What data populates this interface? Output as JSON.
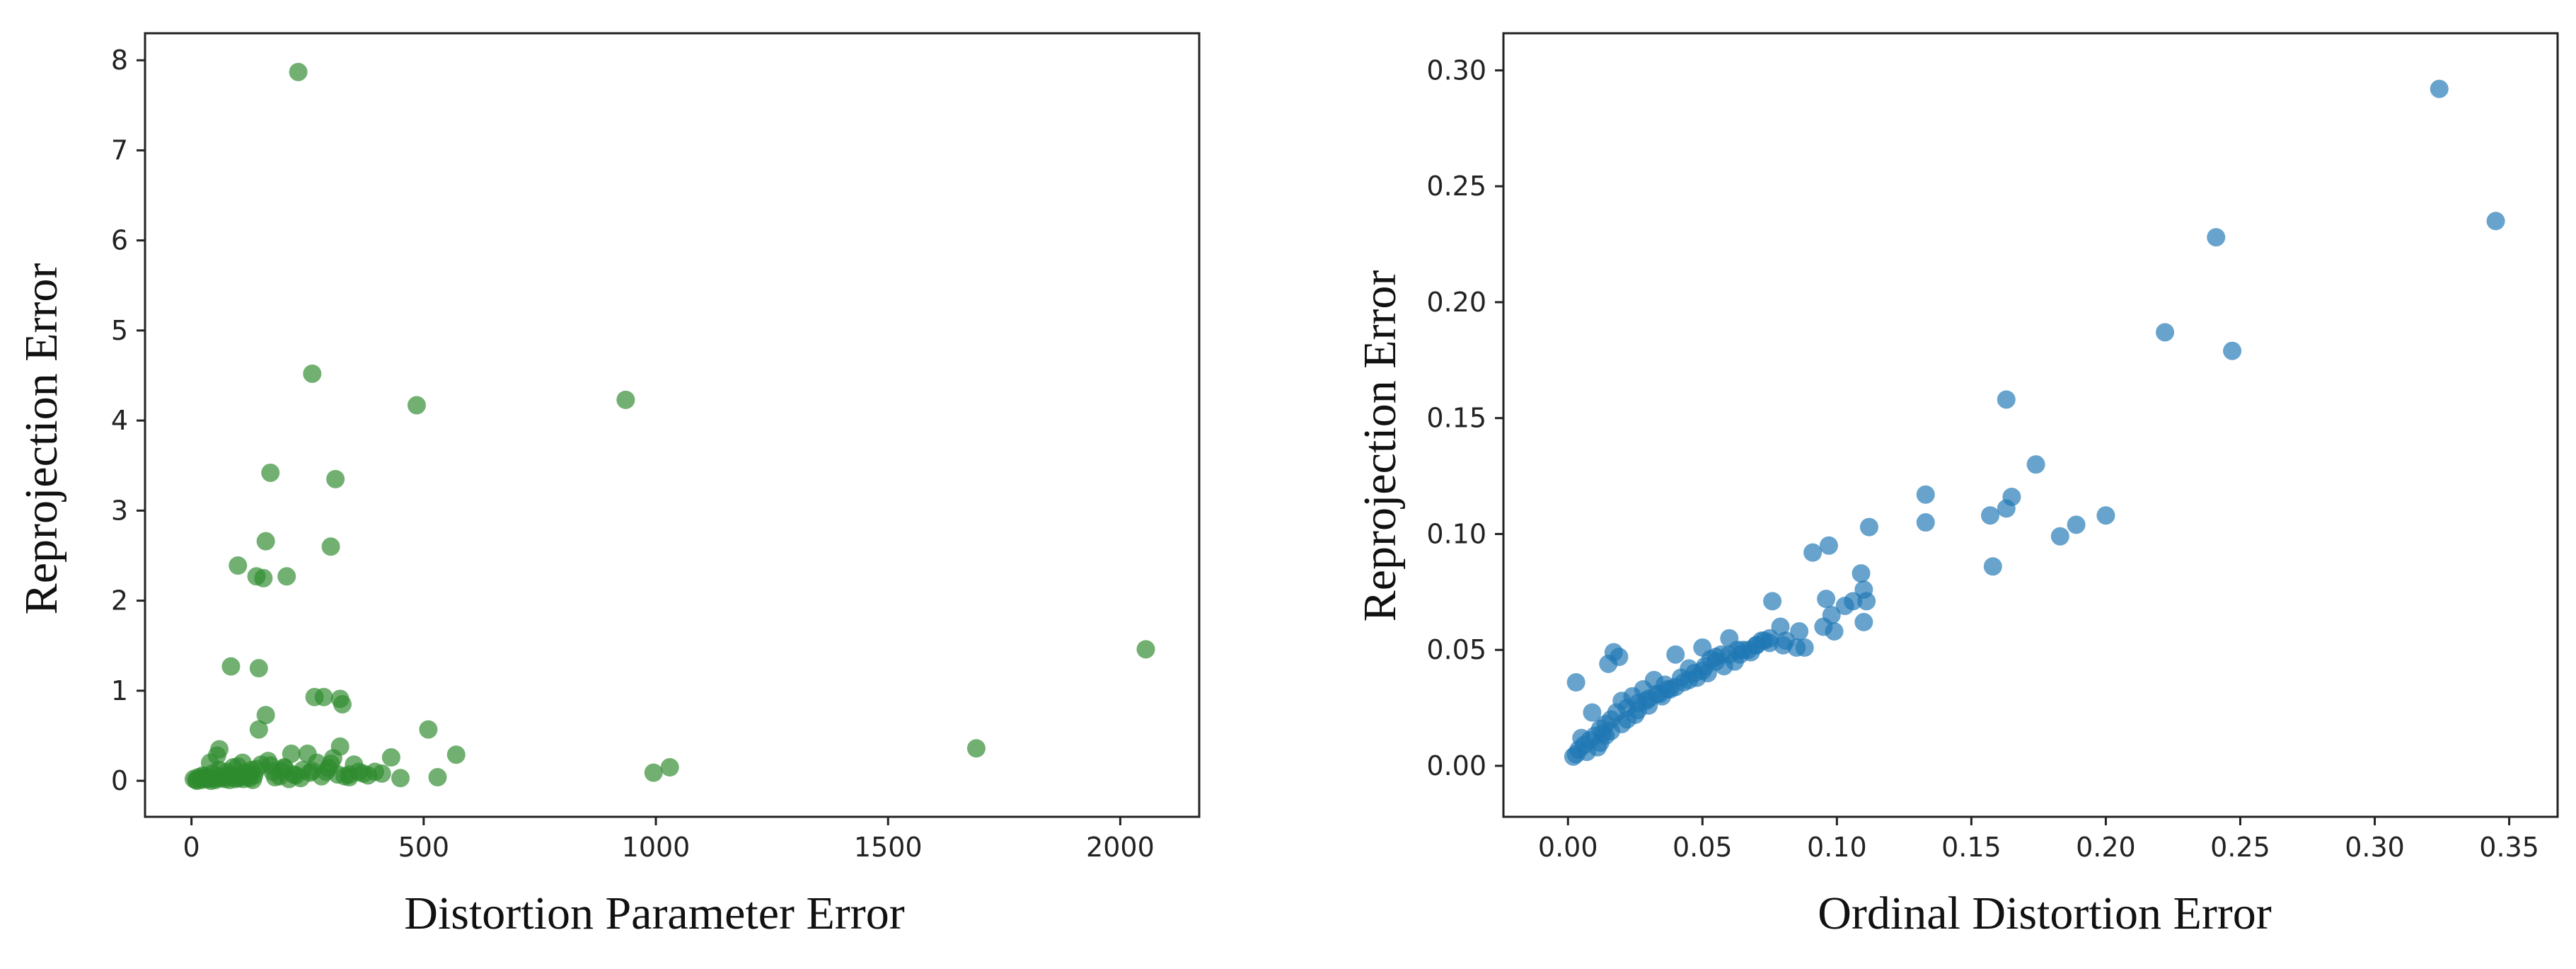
{
  "chart_data": [
    {
      "type": "scatter",
      "xlabel": "Distortion Parameter Error",
      "ylabel": "Reprojection Error",
      "xlim": [
        -100,
        2170
      ],
      "ylim": [
        -0.4,
        8.3
      ],
      "x_ticks": [
        "0",
        "500",
        "1000",
        "1500",
        "2000"
      ],
      "x_tick_values": [
        0,
        500,
        1000,
        1500,
        2000
      ],
      "y_ticks": [
        "0",
        "1",
        "2",
        "3",
        "4",
        "5",
        "6",
        "7",
        "8"
      ],
      "y_tick_values": [
        0,
        1,
        2,
        3,
        4,
        5,
        6,
        7,
        8
      ],
      "grid": false,
      "color": "#2e8b2e",
      "series": [
        {
          "x": [
            230,
            260,
            485,
            935,
            310,
            170,
            300,
            160,
            100,
            140,
            155,
            205,
            2055,
            85,
            145,
            265,
            285,
            320,
            325,
            160,
            145,
            510,
            1690,
            60,
            570,
            430,
            395,
            1030,
            995,
            530,
            320,
            250,
            215,
            40,
            55,
            65,
            75,
            90,
            110,
            120,
            130,
            150,
            165,
            175,
            190,
            200,
            220,
            240,
            270,
            290,
            305,
            330,
            350,
            370,
            20,
            30,
            10,
            5,
            15,
            25,
            35,
            45,
            50,
            70,
            80,
            95,
            105,
            115,
            125,
            135,
            180,
            195,
            210,
            225,
            235,
            255,
            280,
            295,
            315,
            340,
            360,
            380,
            410,
            450,
            60,
            100,
            140,
            170,
            200,
            260,
            300,
            340,
            12,
            22,
            32,
            42,
            52,
            62,
            72,
            82,
            92,
            102,
            112,
            122,
            132
          ],
          "y": [
            7.87,
            4.52,
            4.17,
            4.23,
            3.35,
            3.42,
            2.6,
            2.66,
            2.39,
            2.27,
            2.25,
            2.27,
            1.46,
            1.27,
            1.25,
            0.93,
            0.93,
            0.91,
            0.85,
            0.73,
            0.57,
            0.57,
            0.36,
            0.35,
            0.29,
            0.26,
            0.1,
            0.15,
            0.09,
            0.04,
            0.38,
            0.3,
            0.3,
            0.2,
            0.28,
            0.05,
            0.1,
            0.15,
            0.2,
            0.08,
            0.12,
            0.18,
            0.22,
            0.1,
            0.05,
            0.15,
            0.07,
            0.12,
            0.2,
            0.1,
            0.25,
            0.05,
            0.18,
            0.08,
            0.03,
            0.05,
            0.01,
            0.02,
            0.04,
            0.06,
            0.02,
            0.08,
            0.03,
            0.04,
            0.07,
            0.02,
            0.05,
            0.09,
            0.03,
            0.06,
            0.04,
            0.11,
            0.02,
            0.06,
            0.03,
            0.09,
            0.05,
            0.14,
            0.07,
            0.04,
            0.1,
            0.06,
            0.08,
            0.03,
            0.12,
            0.16,
            0.13,
            0.17,
            0.14,
            0.11,
            0.19,
            0.07,
            0.0,
            0.01,
            0.02,
            0.0,
            0.01,
            0.03,
            0.02,
            0.01,
            0.04,
            0.03,
            0.02,
            0.05,
            0.01
          ]
        }
      ]
    },
    {
      "type": "scatter",
      "xlabel": "Ordinal Distortion Error",
      "ylabel": "Reprojection Error",
      "xlim": [
        -0.024,
        0.368
      ],
      "ylim": [
        -0.022,
        0.316
      ],
      "x_ticks": [
        "0.00",
        "0.05",
        "0.10",
        "0.15",
        "0.20",
        "0.25",
        "0.30",
        "0.35"
      ],
      "x_tick_values": [
        0,
        0.05,
        0.1,
        0.15,
        0.2,
        0.25,
        0.3,
        0.35
      ],
      "y_ticks": [
        "0.00",
        "0.05",
        "0.10",
        "0.15",
        "0.20",
        "0.25",
        "0.30"
      ],
      "y_tick_values": [
        0,
        0.05,
        0.1,
        0.15,
        0.2,
        0.25,
        0.3
      ],
      "grid": false,
      "color": "#1f77b4",
      "series": [
        {
          "x": [
            0.324,
            0.345,
            0.241,
            0.222,
            0.247,
            0.163,
            0.174,
            0.165,
            0.163,
            0.133,
            0.157,
            0.133,
            0.2,
            0.189,
            0.183,
            0.158,
            0.112,
            0.109,
            0.097,
            0.096,
            0.091,
            0.11,
            0.111,
            0.106,
            0.103,
            0.098,
            0.095,
            0.099,
            0.076,
            0.11,
            0.086,
            0.081,
            0.079,
            0.075,
            0.072,
            0.07,
            0.067,
            0.064,
            0.062,
            0.06,
            0.058,
            0.055,
            0.052,
            0.05,
            0.048,
            0.045,
            0.043,
            0.04,
            0.038,
            0.036,
            0.034,
            0.032,
            0.03,
            0.028,
            0.026,
            0.024,
            0.022,
            0.02,
            0.018,
            0.016,
            0.014,
            0.012,
            0.01,
            0.008,
            0.006,
            0.004,
            0.003,
            0.002,
            0.017,
            0.019,
            0.003,
            0.015,
            0.02,
            0.025,
            0.03,
            0.035,
            0.04,
            0.045,
            0.05,
            0.055,
            0.06,
            0.065,
            0.07,
            0.075,
            0.08,
            0.085,
            0.088,
            0.012,
            0.014,
            0.016,
            0.022,
            0.026,
            0.029,
            0.033,
            0.037,
            0.042,
            0.047,
            0.051,
            0.053,
            0.057,
            0.063,
            0.068,
            0.073,
            0.009,
            0.005,
            0.007,
            0.011,
            0.013
          ],
          "y": [
            0.292,
            0.235,
            0.228,
            0.187,
            0.179,
            0.158,
            0.13,
            0.116,
            0.111,
            0.117,
            0.108,
            0.105,
            0.108,
            0.104,
            0.099,
            0.086,
            0.103,
            0.083,
            0.095,
            0.072,
            0.092,
            0.076,
            0.071,
            0.071,
            0.069,
            0.065,
            0.06,
            0.058,
            0.071,
            0.062,
            0.058,
            0.054,
            0.06,
            0.055,
            0.054,
            0.052,
            0.05,
            0.048,
            0.045,
            0.055,
            0.043,
            0.047,
            0.04,
            0.051,
            0.038,
            0.042,
            0.036,
            0.048,
            0.033,
            0.035,
            0.031,
            0.037,
            0.029,
            0.033,
            0.027,
            0.03,
            0.025,
            0.028,
            0.023,
            0.02,
            0.018,
            0.016,
            0.013,
            0.011,
            0.009,
            0.007,
            0.005,
            0.004,
            0.049,
            0.047,
            0.036,
            0.044,
            0.018,
            0.022,
            0.026,
            0.03,
            0.034,
            0.037,
            0.041,
            0.045,
            0.048,
            0.05,
            0.052,
            0.053,
            0.052,
            0.051,
            0.051,
            0.01,
            0.013,
            0.015,
            0.02,
            0.024,
            0.028,
            0.031,
            0.033,
            0.038,
            0.04,
            0.043,
            0.046,
            0.048,
            0.05,
            0.049,
            0.054,
            0.023,
            0.012,
            0.006,
            0.008,
            0.014
          ]
        }
      ]
    }
  ]
}
